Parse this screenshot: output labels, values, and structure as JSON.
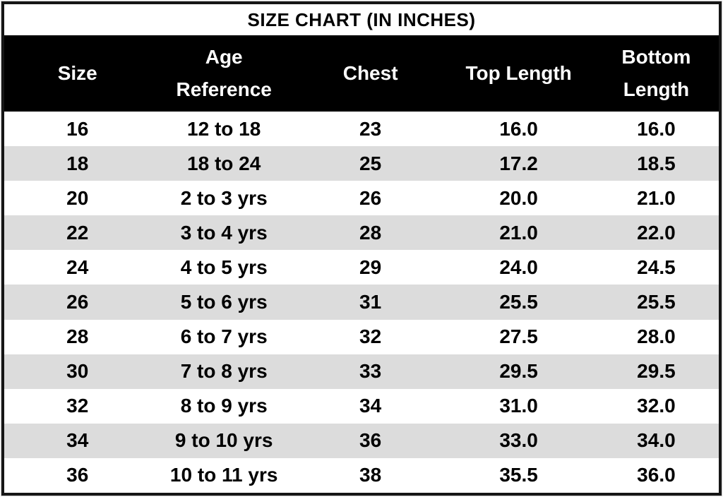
{
  "chart_data": {
    "type": "table",
    "title": "SIZE CHART (IN INCHES)",
    "columns": [
      {
        "label": "Size",
        "lines": [
          "Size"
        ]
      },
      {
        "label": "Age Reference",
        "lines": [
          "Age",
          "Reference"
        ]
      },
      {
        "label": "Chest",
        "lines": [
          "Chest"
        ]
      },
      {
        "label": "Top Length",
        "lines": [
          "Top Length"
        ]
      },
      {
        "label": "Bottom Length",
        "lines": [
          "Bottom",
          "Length"
        ]
      }
    ],
    "rows": [
      [
        "16",
        "12 to 18",
        "23",
        "16.0",
        "16.0"
      ],
      [
        "18",
        "18 to 24",
        "25",
        "17.2",
        "18.5"
      ],
      [
        "20",
        "2 to 3 yrs",
        "26",
        "20.0",
        "21.0"
      ],
      [
        "22",
        "3 to 4 yrs",
        "28",
        "21.0",
        "22.0"
      ],
      [
        "24",
        "4 to 5 yrs",
        "29",
        "24.0",
        "24.5"
      ],
      [
        "26",
        "5 to 6 yrs",
        "31",
        "25.5",
        "25.5"
      ],
      [
        "28",
        "6 to 7 yrs",
        "32",
        "27.5",
        "28.0"
      ],
      [
        "30",
        "7 to 8 yrs",
        "33",
        "29.5",
        "29.5"
      ],
      [
        "32",
        "8 to 9 yrs",
        "34",
        "31.0",
        "32.0"
      ],
      [
        "34",
        "9 to 10 yrs",
        "36",
        "33.0",
        "34.0"
      ],
      [
        "36",
        "10 to 11 yrs",
        "38",
        "35.5",
        "36.0"
      ]
    ],
    "layout": {
      "striped": true,
      "stripe_start_row_index": 1,
      "header_position": "top"
    }
  },
  "colors": {
    "header_bg": "#000000",
    "header_text": "#ffffff",
    "row_bg": "#ffffff",
    "row_alt_bg": "#dcdcdc",
    "text": "#000000",
    "border": "#161616"
  }
}
